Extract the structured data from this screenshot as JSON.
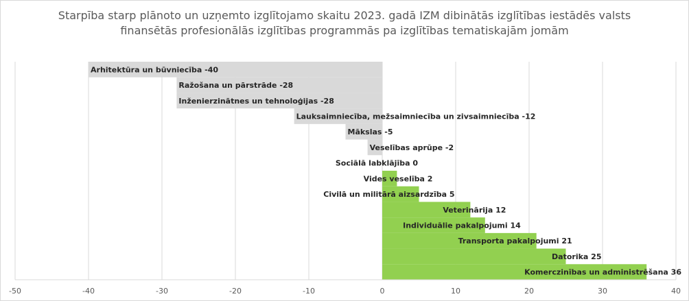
{
  "chart_data": {
    "type": "bar",
    "orientation": "horizontal",
    "title_lines": [
      "Starpība starp plānoto un uzņemto izglītojamo skaitu 2023. gadā IZM dibinātās izglītības iestādēs valsts",
      "finansētās profesionālās izglītības programmās pa izglītības tematiskajām jomām"
    ],
    "categories": [
      "Arhitektūra un būvniecība",
      "Ražošana un pārstrāde",
      "Inženierzinātnes un tehnoloģijas",
      "Lauksaimniecība, mežsaimniecība un zivsaimniecība",
      "Mākslas",
      "Veselības aprūpe",
      "Sociālā labklājība",
      "Vides veselība",
      "Civilā un militārā aizsardzība",
      "Veterinārija",
      "Individuālie pakalpojumi",
      "Transporta pakalpojumi",
      "Datorika",
      "Komerczinības un administrēšana"
    ],
    "values": [
      -40,
      -28,
      -28,
      -12,
      -5,
      -2,
      0,
      2,
      5,
      12,
      14,
      21,
      25,
      36
    ],
    "data_labels": [
      "Arhitektūra un būvniecība -40",
      "Ražošana un pārstrāde -28",
      "Inženierzinātnes un tehnoloģijas -28",
      "Lauksaimniecība, mežsaimniecība un zivsaimniecība -12",
      "Mākslas -5",
      "Veselības aprūpe -2",
      "Sociālā labklājība 0",
      "Vides veselība 2",
      "Civilā un militārā aizsardzība 5",
      "Veterinārija 12",
      "Individuālie pakalpojumi 14",
      "Transporta pakalpojumi 21",
      "Datorika 25",
      "Komerczinības un administrēšana 36"
    ],
    "x_ticks": [
      -50,
      -40,
      -30,
      -20,
      -10,
      0,
      10,
      20,
      30,
      40
    ],
    "x_tick_labels": [
      "-50",
      "-40",
      "-30",
      "-20",
      "-10",
      "0",
      "10",
      "20",
      "30",
      "40"
    ],
    "xlim": [
      -50,
      40
    ],
    "grid": "vertical",
    "legend": "none",
    "colors": {
      "negative": "#d9d9d9",
      "positive": "#92d050",
      "gridline": "#d9d9d9",
      "label": "#262626",
      "title": "#595959"
    }
  }
}
